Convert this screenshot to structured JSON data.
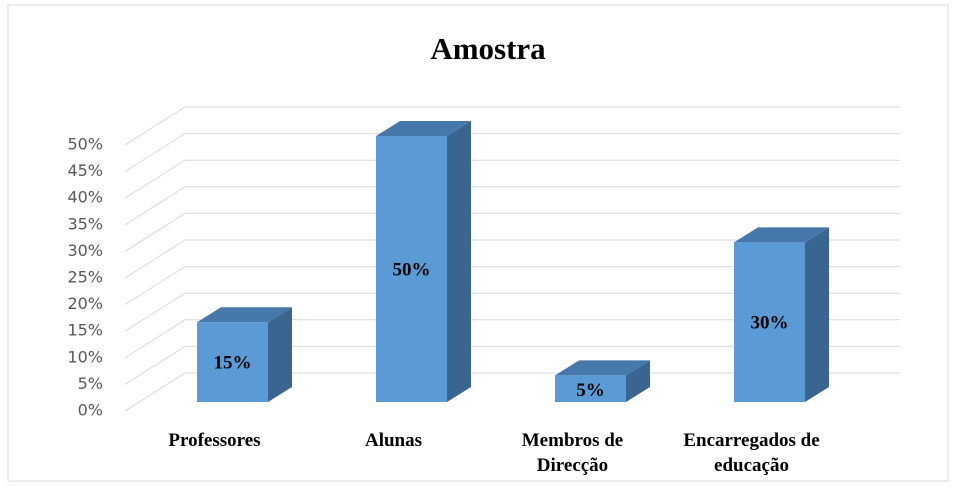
{
  "chart_data": {
    "type": "bar3d",
    "title": "Amostra",
    "categories": [
      "Professores",
      "Alunas",
      "Membros de Direcção",
      "Encarregados de educação"
    ],
    "values": [
      15,
      50,
      5,
      30
    ],
    "value_labels": [
      "15%",
      "50%",
      "5%",
      "30%"
    ],
    "color": "#5b9bd5",
    "ylim": [
      0,
      50
    ],
    "yticks": [
      {
        "value": 0,
        "label": "0%"
      },
      {
        "value": 5,
        "label": "5%"
      },
      {
        "value": 10,
        "label": "10%"
      },
      {
        "value": 15,
        "label": "15%"
      },
      {
        "value": 20,
        "label": "20%"
      },
      {
        "value": 25,
        "label": "25%"
      },
      {
        "value": 30,
        "label": "30%"
      },
      {
        "value": 35,
        "label": "35%"
      },
      {
        "value": 40,
        "label": "40%"
      },
      {
        "value": 45,
        "label": "45%"
      },
      {
        "value": 50,
        "label": "50%"
      }
    ],
    "grid": true
  }
}
